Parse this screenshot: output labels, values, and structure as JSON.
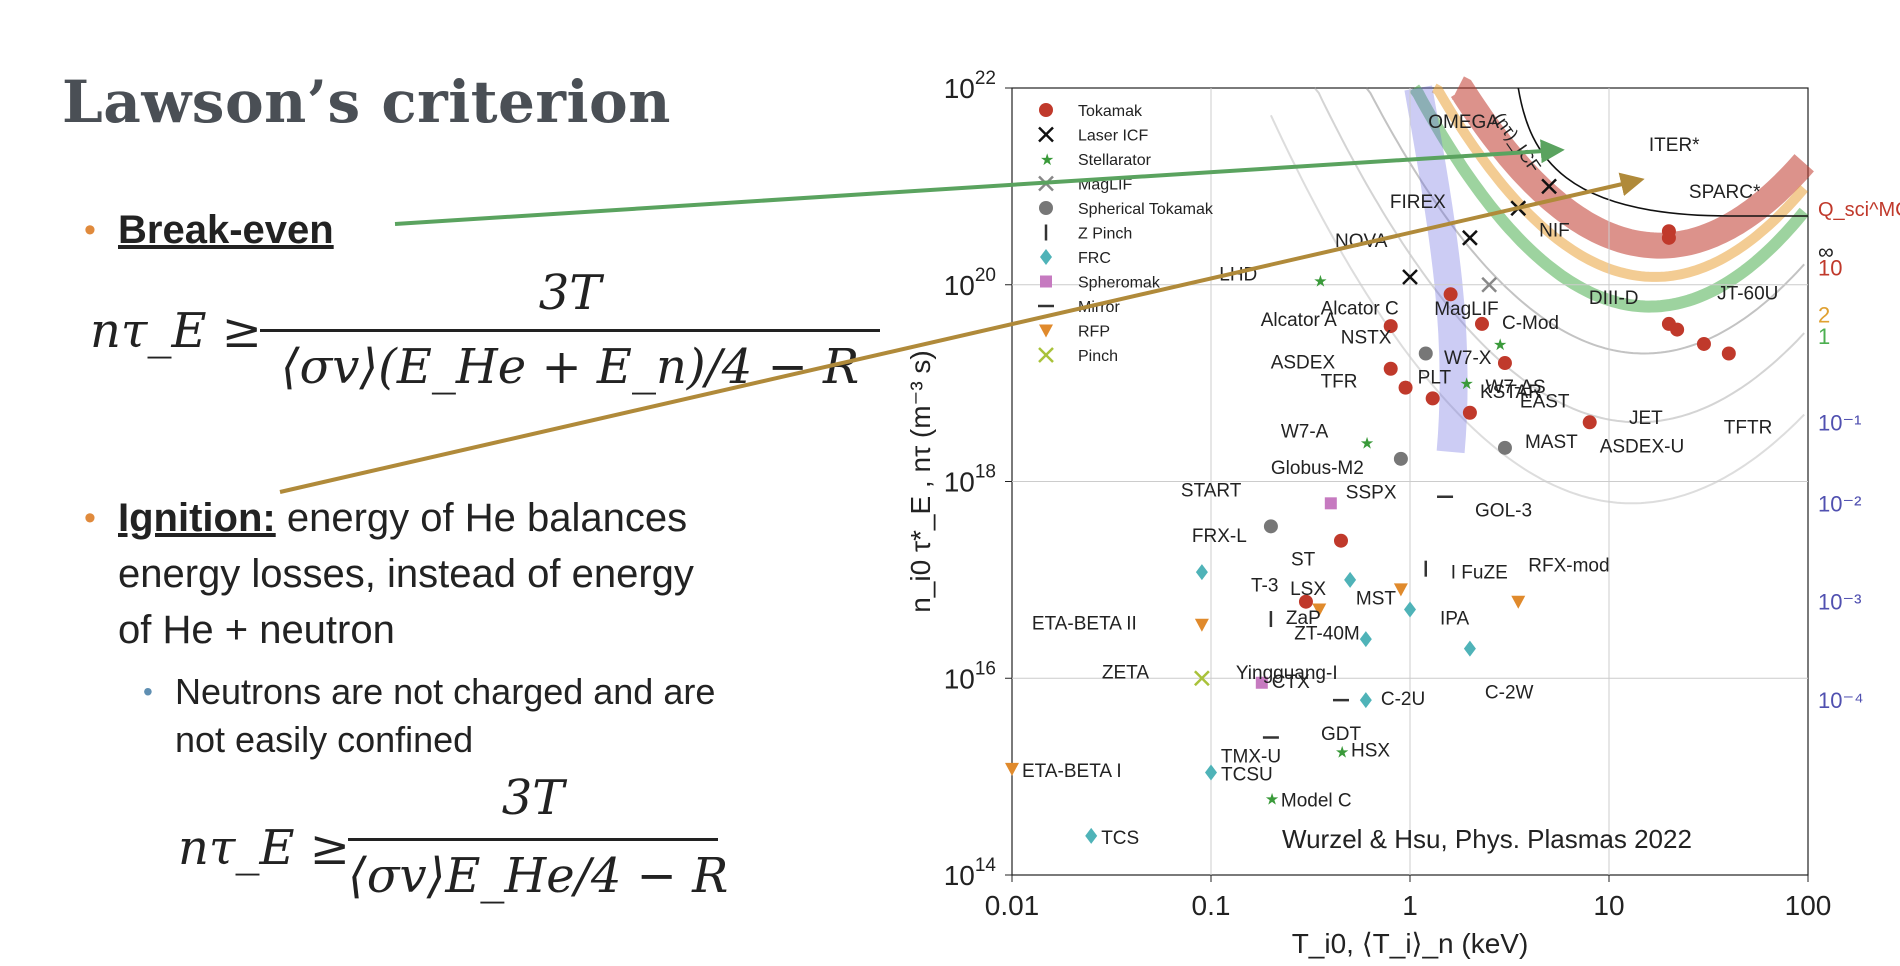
{
  "slide": {
    "title": "Lawson’s criterion"
  },
  "breakeven": {
    "keyword": "Break-even",
    "formula_lhs": "nτ_E ≥",
    "formula_num": "3T",
    "formula_den": "⟨σv⟩(E_He + E_n)/4 − R"
  },
  "ignition": {
    "keyword": "Ignition:",
    "text_1": " energy of He balances",
    "text_2": "energy losses, instead of energy",
    "text_3": "of He + neutron",
    "sub_1": "Neutrons are not charged and are",
    "sub_2": "not easily confined",
    "formula_lhs": "nτ_E ≥",
    "formula_num": "3T",
    "formula_den": "⟨σv⟩E_He/4 − R"
  },
  "arrows": {
    "breakeven_color": "#5aa35f",
    "ignition_color": "#b08a3a"
  },
  "chart_data": {
    "type": "scatter",
    "xlabel": "T_i0, ⟨T_i⟩_n (keV)",
    "ylabel": "n_i0 τ*_E , nτ (m⁻³ s)",
    "xscale": "log",
    "yscale": "log",
    "xlim": [
      0.01,
      100
    ],
    "ylim": [
      100000000000000.0,
      1e+22
    ],
    "x_ticks": [
      "0.01",
      "0.1",
      "1",
      "10",
      "100"
    ],
    "y_ticks": [
      "10^14",
      "10^16",
      "10^18",
      "10^20",
      "10^22"
    ],
    "credit": "Wurzel & Hsu, Phys. Plasmas 2022",
    "legend": [
      {
        "name": "Tokamak",
        "marker": "circle",
        "color": "#c0392b"
      },
      {
        "name": "Laser ICF",
        "marker": "x",
        "color": "#111111"
      },
      {
        "name": "Stellarator",
        "marker": "star",
        "color": "#3a9a3a"
      },
      {
        "name": "MagLIF",
        "marker": "x",
        "color": "#888888"
      },
      {
        "name": "Spherical Tokamak",
        "marker": "circle",
        "color": "#777777"
      },
      {
        "name": "Z Pinch",
        "marker": "bar",
        "color": "#333333"
      },
      {
        "name": "FRC",
        "marker": "diamond",
        "color": "#4fb3b8"
      },
      {
        "name": "Spheromak",
        "marker": "square",
        "color": "#c67ac0"
      },
      {
        "name": "Mirror",
        "marker": "dash",
        "color": "#333333"
      },
      {
        "name": "RFP",
        "marker": "triangle",
        "color": "#e08a2c"
      },
      {
        "name": "Pinch",
        "marker": "x",
        "color": "#a9c23a"
      }
    ],
    "q_label": "Q_sci^MCF",
    "q_values": [
      "∞",
      "10",
      "2",
      "1",
      "10⁻¹",
      "10⁻²",
      "10⁻³",
      "10⁻⁴"
    ],
    "curve_label": "(nτ)_ICF",
    "points": [
      {
        "label": "ITER*",
        "x": 20,
        "y": 3.5e+20,
        "kind": "Tokamak"
      },
      {
        "label": "SPARC*",
        "x": 20,
        "y": 3e+20,
        "kind": "Tokamak"
      },
      {
        "label": "OMEGA",
        "x": 3.5,
        "y": 6e+20,
        "kind": "Laser ICF"
      },
      {
        "label": "NIF",
        "x": 5,
        "y": 1e+21,
        "kind": "Laser ICF"
      },
      {
        "label": "FIREX",
        "x": 2,
        "y": 3e+20,
        "kind": "Laser ICF"
      },
      {
        "label": "NOVA",
        "x": 1,
        "y": 1.2e+20,
        "kind": "Laser ICF"
      },
      {
        "label": "LHD",
        "x": 0.35,
        "y": 1.1e+20,
        "kind": "Stellarator"
      },
      {
        "label": "Alcator C",
        "x": 1.6,
        "y": 8e+19,
        "kind": "Tokamak"
      },
      {
        "label": "MagLIF",
        "x": 2.5,
        "y": 1e+20,
        "kind": "MagLIF"
      },
      {
        "label": "Alcator A",
        "x": 0.8,
        "y": 3.8e+19,
        "kind": "Tokamak"
      },
      {
        "label": "C-Mod",
        "x": 2.3,
        "y": 4e+19,
        "kind": "Tokamak"
      },
      {
        "label": "DIII-D",
        "x": 20,
        "y": 4e+19,
        "kind": "Tokamak"
      },
      {
        "label": "JT-60U",
        "x": 22,
        "y": 3.5e+19,
        "kind": "Tokamak"
      },
      {
        "label": "NSTX",
        "x": 1.2,
        "y": 2e+19,
        "kind": "Spherical Tokamak"
      },
      {
        "label": "W7-X",
        "x": 2.8,
        "y": 2.5e+19,
        "kind": "Stellarator"
      },
      {
        "label": "KSTAR",
        "x": 3,
        "y": 1.6e+19,
        "kind": "Tokamak"
      },
      {
        "label": "ASDEX",
        "x": 0.8,
        "y": 1.4e+19,
        "kind": "Tokamak"
      },
      {
        "label": "W7-AS",
        "x": 1.9,
        "y": 1e+19,
        "kind": "Stellarator"
      },
      {
        "label": "TFR",
        "x": 0.95,
        "y": 9e+18,
        "kind": "Tokamak"
      },
      {
        "label": "PLT",
        "x": 1.3,
        "y": 7e+18,
        "kind": "Tokamak"
      },
      {
        "label": "EAST",
        "x": 2,
        "y": 5e+18,
        "kind": "Tokamak"
      },
      {
        "label": "JET",
        "x": 30,
        "y": 2.5e+19,
        "kind": "Tokamak"
      },
      {
        "label": "TFTR",
        "x": 40,
        "y": 2e+19,
        "kind": "Tokamak"
      },
      {
        "label": "W7-A",
        "x": 0.6,
        "y": 2.5e+18,
        "kind": "Stellarator"
      },
      {
        "label": "Globus-M2",
        "x": 0.9,
        "y": 1.7e+18,
        "kind": "Spherical Tokamak"
      },
      {
        "label": "MAST",
        "x": 3,
        "y": 2.2e+18,
        "kind": "Spherical Tokamak"
      },
      {
        "label": "ASDEX-U",
        "x": 8,
        "y": 4e+18,
        "kind": "Tokamak"
      },
      {
        "label": "START",
        "x": 0.2,
        "y": 3.5e+17,
        "kind": "Spherical Tokamak"
      },
      {
        "label": "SSPX",
        "x": 0.4,
        "y": 6e+17,
        "kind": "Spheromak"
      },
      {
        "label": "GOL-3",
        "x": 1.5,
        "y": 7e+17,
        "kind": "Mirror"
      },
      {
        "label": "FRX-L",
        "x": 0.09,
        "y": 1.2e+17,
        "kind": "FRC"
      },
      {
        "label": "ST",
        "x": 0.45,
        "y": 2.5e+17,
        "kind": "Tokamak"
      },
      {
        "label": "I FuZE",
        "x": 1.2,
        "y": 1.3e+17,
        "kind": "Z Pinch"
      },
      {
        "label": "RFX-mod",
        "x": 3.5,
        "y": 6e+16,
        "kind": "RFP"
      },
      {
        "label": "LSX",
        "x": 0.5,
        "y": 1e+17,
        "kind": "FRC"
      },
      {
        "label": "MST",
        "x": 0.9,
        "y": 8e+16,
        "kind": "RFP"
      },
      {
        "label": "T-3",
        "x": 0.3,
        "y": 6e+16,
        "kind": "Tokamak"
      },
      {
        "label": "IPA",
        "x": 1,
        "y": 5e+16,
        "kind": "FRC"
      },
      {
        "label": "ZT-40M",
        "x": 0.35,
        "y": 5e+16,
        "kind": "RFP"
      },
      {
        "label": "ETA-BETA II",
        "x": 0.09,
        "y": 3.5e+16,
        "kind": "RFP"
      },
      {
        "label": "ZaP",
        "x": 0.2,
        "y": 4e+16,
        "kind": "Z Pinch"
      },
      {
        "label": "Yingguang-I",
        "x": 0.6,
        "y": 2.5e+16,
        "kind": "FRC"
      },
      {
        "label": "C-2W",
        "x": 2,
        "y": 2e+16,
        "kind": "FRC"
      },
      {
        "label": "ZETA",
        "x": 0.09,
        "y": 1e+16,
        "kind": "Pinch"
      },
      {
        "label": "CTX",
        "x": 0.18,
        "y": 9000000000000000.0,
        "kind": "Spheromak"
      },
      {
        "label": "C-2U",
        "x": 0.6,
        "y": 6000000000000000.0,
        "kind": "FRC"
      },
      {
        "label": "GDT",
        "x": 0.45,
        "y": 6000000000000000.0,
        "kind": "Mirror"
      },
      {
        "label": "TMX-U",
        "x": 0.2,
        "y": 2500000000000000.0,
        "kind": "Mirror"
      },
      {
        "label": "HSX",
        "x": 0.45,
        "y": 1800000000000000.0,
        "kind": "Stellarator"
      },
      {
        "label": "ETA-BETA I",
        "x": 0.01,
        "y": 1200000000000000.0,
        "kind": "RFP"
      },
      {
        "label": "TCSU",
        "x": 0.1,
        "y": 1100000000000000.0,
        "kind": "FRC"
      },
      {
        "label": "Model C",
        "x": 0.2,
        "y": 600000000000000.0,
        "kind": "Stellarator"
      },
      {
        "label": "TCS",
        "x": 0.025,
        "y": 250000000000000.0,
        "kind": "FRC"
      }
    ]
  }
}
